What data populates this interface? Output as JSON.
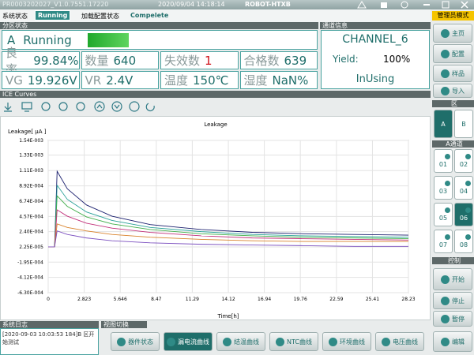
{
  "title_bar": {
    "version": "PR0003202027_V1.0.7551.17220",
    "datetime": "2020/09/04 14:18:14",
    "name": "ROBOT-HTXB",
    "mode": "管理员模式"
  },
  "status_bar": {
    "system_label": "系统状态",
    "system_value": "Running",
    "config_label": "加载配置状态",
    "config_value": "Compelete"
  },
  "zone_panel": {
    "header": "分区状态",
    "zone": "A",
    "state": "Running",
    "stats": [
      {
        "label": "良率",
        "value": "99.84%"
      },
      {
        "label": "数量",
        "value": 640
      },
      {
        "label": "失效数",
        "value": 1
      },
      {
        "label": "合格数",
        "value": 639
      }
    ],
    "readings": [
      {
        "label": "VG",
        "value": "19.926V"
      },
      {
        "label": "VR",
        "value": "2.4V"
      },
      {
        "label": "温度",
        "value": "150℃"
      },
      {
        "label": "湿度",
        "value": "NaN%"
      }
    ]
  },
  "channel_panel": {
    "header": "通道信息",
    "channel": "CHANNEL_6",
    "yield_label": "Yield:",
    "yield_value": "100%",
    "status": "InUsing"
  },
  "sidebar": {
    "nav": [
      "主页",
      "配置",
      "样品",
      "导入"
    ],
    "zone_header": "区",
    "zones": [
      "A",
      "B"
    ],
    "channel_header": "A通道",
    "channels": [
      "01",
      "02",
      "03",
      "04",
      "05",
      "06",
      "07",
      "08"
    ],
    "control_header": "控制",
    "controls": [
      "开始",
      "停止",
      "暂停"
    ]
  },
  "curves_header": "ICE Curves",
  "chart_data": {
    "type": "line",
    "title": "Leakage",
    "y_label": "Leakage[ μA ]",
    "x_label": "Time[h]",
    "x": [
      0,
      0.4,
      0.5,
      0.7,
      1.5,
      3,
      5,
      8,
      12,
      16,
      20,
      24,
      28.23
    ],
    "xlim": [
      0,
      28.23
    ],
    "xticks": [
      0,
      2.823,
      5.646,
      8.47,
      11.29,
      14.12,
      16.94,
      19.76,
      22.59,
      25.41,
      28.23
    ],
    "ylim": [
      -0.00063,
      0.00154
    ],
    "yticks": [
      {
        "value": -0.00063,
        "label": "-6.30E-004"
      },
      {
        "value": -0.000412,
        "label": "-4.12E-004"
      },
      {
        "value": -0.000195,
        "label": "-1.95E-004"
      },
      {
        "value": 2.25e-05,
        "label": "2.25E-005"
      },
      {
        "value": 0.00024,
        "label": "2.40E-004"
      },
      {
        "value": 0.000457,
        "label": "4.57E-004"
      },
      {
        "value": 0.000674,
        "label": "6.74E-004"
      },
      {
        "value": 0.000892,
        "label": "8.92E-004"
      },
      {
        "value": 0.00111,
        "label": "1.11E-003"
      },
      {
        "value": 0.00133,
        "label": "1.33E-003"
      },
      {
        "value": 0.00154,
        "label": "1.54E-003"
      }
    ],
    "grid": true,
    "series": [
      {
        "color": "#1a1f6e",
        "values": [
          2.25e-05,
          2.25e-05,
          2.25e-05,
          0.0011,
          0.00085,
          0.00062,
          0.00046,
          0.00034,
          0.00027,
          0.00023,
          0.00021,
          0.0002,
          0.00019
        ]
      },
      {
        "color": "#2aa198",
        "values": [
          2.25e-05,
          2.25e-05,
          2.25e-05,
          0.0009,
          0.0007,
          0.00052,
          0.0004,
          0.0003,
          0.00024,
          0.0002,
          0.00018,
          0.00017,
          0.00016
        ]
      },
      {
        "color": "#3fae49",
        "values": [
          2.25e-05,
          2.25e-05,
          2.25e-05,
          0.00075,
          0.0006,
          0.00045,
          0.00035,
          0.00027,
          0.00021,
          0.00018,
          0.00016,
          0.00015,
          0.00014
        ]
      },
      {
        "color": "#c2307a",
        "values": [
          2.25e-05,
          2.25e-05,
          2.25e-05,
          0.00055,
          0.00046,
          0.00036,
          0.00029,
          0.00023,
          0.00018,
          0.00015,
          0.00014,
          0.00013,
          0.00012
        ]
      },
      {
        "color": "#d9822b",
        "values": [
          2.25e-05,
          2.25e-05,
          2.25e-05,
          0.00035,
          0.0003,
          0.00025,
          0.0002,
          0.00016,
          0.00013,
          0.00011,
          0.0001,
          0.0001,
          0.0001
        ]
      },
      {
        "color": "#7b4fbf",
        "values": [
          2.25e-05,
          2.25e-05,
          2.25e-05,
          0.00025,
          0.0002,
          0.00015,
          0.00011,
          8e-05,
          6e-05,
          5e-05,
          4e-05,
          3e-05,
          3e-05
        ]
      }
    ]
  },
  "log": {
    "header": "系统日志",
    "entry": "[2020-09-03 10:03:53 184]B 区开始测试"
  },
  "view_switch": {
    "header": "视图切换",
    "buttons": [
      "器件状态",
      "漏电流曲线",
      "结温曲线",
      "NTC曲线",
      "环境曲线",
      "电压曲线"
    ],
    "edit": "编辑"
  }
}
